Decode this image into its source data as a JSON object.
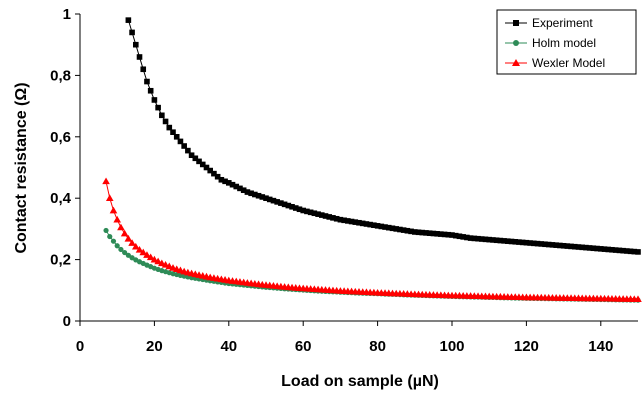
{
  "chart_data": {
    "type": "scatter",
    "xlabel": "Load on sample (µN)",
    "ylabel": "Contact resistance (Ω)",
    "xlim": [
      0,
      150
    ],
    "ylim": [
      0,
      1
    ],
    "x_ticks": [
      0,
      20,
      40,
      60,
      80,
      100,
      120,
      140
    ],
    "x_tick_labels": [
      "0",
      "20",
      "40",
      "60",
      "80",
      "100",
      "120",
      "140"
    ],
    "y_ticks": [
      0,
      0.2,
      0.4,
      0.6,
      0.8,
      1
    ],
    "y_tick_labels": [
      "0",
      "0,2",
      "0,4",
      "0,6",
      "0,8",
      "1"
    ],
    "grid": false,
    "legend_position": "top-right",
    "series": [
      {
        "name": "Experiment",
        "color": "#000000",
        "marker": "square",
        "x": [
          13,
          14,
          15,
          16,
          17,
          18,
          19,
          20,
          22,
          24,
          26,
          28,
          30,
          32,
          35,
          38,
          40,
          45,
          50,
          55,
          60,
          65,
          70,
          75,
          80,
          85,
          90,
          95,
          100,
          105,
          110,
          115,
          120,
          125,
          130,
          135,
          140,
          145,
          150
        ],
        "y": [
          0.98,
          0.94,
          0.9,
          0.86,
          0.82,
          0.78,
          0.75,
          0.72,
          0.67,
          0.63,
          0.6,
          0.57,
          0.54,
          0.52,
          0.49,
          0.46,
          0.45,
          0.42,
          0.4,
          0.38,
          0.36,
          0.345,
          0.33,
          0.32,
          0.31,
          0.3,
          0.29,
          0.285,
          0.28,
          0.27,
          0.265,
          0.26,
          0.255,
          0.25,
          0.245,
          0.24,
          0.235,
          0.23,
          0.225
        ]
      },
      {
        "name": "Holm model",
        "color": "#2e8b57",
        "marker": "circle",
        "x": [
          7,
          8,
          9,
          10,
          11,
          12,
          13,
          14,
          15,
          16,
          18,
          20,
          22,
          25,
          28,
          30,
          35,
          40,
          45,
          50,
          55,
          60,
          65,
          70,
          75,
          80,
          90,
          100,
          110,
          120,
          130,
          140,
          150
        ],
        "y": [
          0.295,
          0.275,
          0.26,
          0.245,
          0.233,
          0.223,
          0.214,
          0.206,
          0.199,
          0.193,
          0.182,
          0.172,
          0.164,
          0.154,
          0.146,
          0.141,
          0.131,
          0.122,
          0.116,
          0.11,
          0.105,
          0.101,
          0.097,
          0.094,
          0.091,
          0.089,
          0.084,
          0.08,
          0.077,
          0.074,
          0.072,
          0.07,
          0.068
        ]
      },
      {
        "name": "Wexler Model",
        "color": "#ff0000",
        "marker": "triangle",
        "x": [
          7,
          8,
          9,
          10,
          11,
          12,
          13,
          14,
          15,
          16,
          18,
          20,
          22,
          25,
          28,
          30,
          35,
          40,
          45,
          50,
          55,
          60,
          65,
          70,
          75,
          80,
          90,
          100,
          110,
          120,
          130,
          140,
          150
        ],
        "y": [
          0.455,
          0.4,
          0.36,
          0.33,
          0.305,
          0.285,
          0.268,
          0.254,
          0.242,
          0.232,
          0.215,
          0.2,
          0.188,
          0.173,
          0.161,
          0.155,
          0.142,
          0.132,
          0.124,
          0.117,
          0.111,
          0.106,
          0.102,
          0.098,
          0.095,
          0.092,
          0.087,
          0.083,
          0.08,
          0.077,
          0.075,
          0.073,
          0.071
        ]
      }
    ]
  }
}
